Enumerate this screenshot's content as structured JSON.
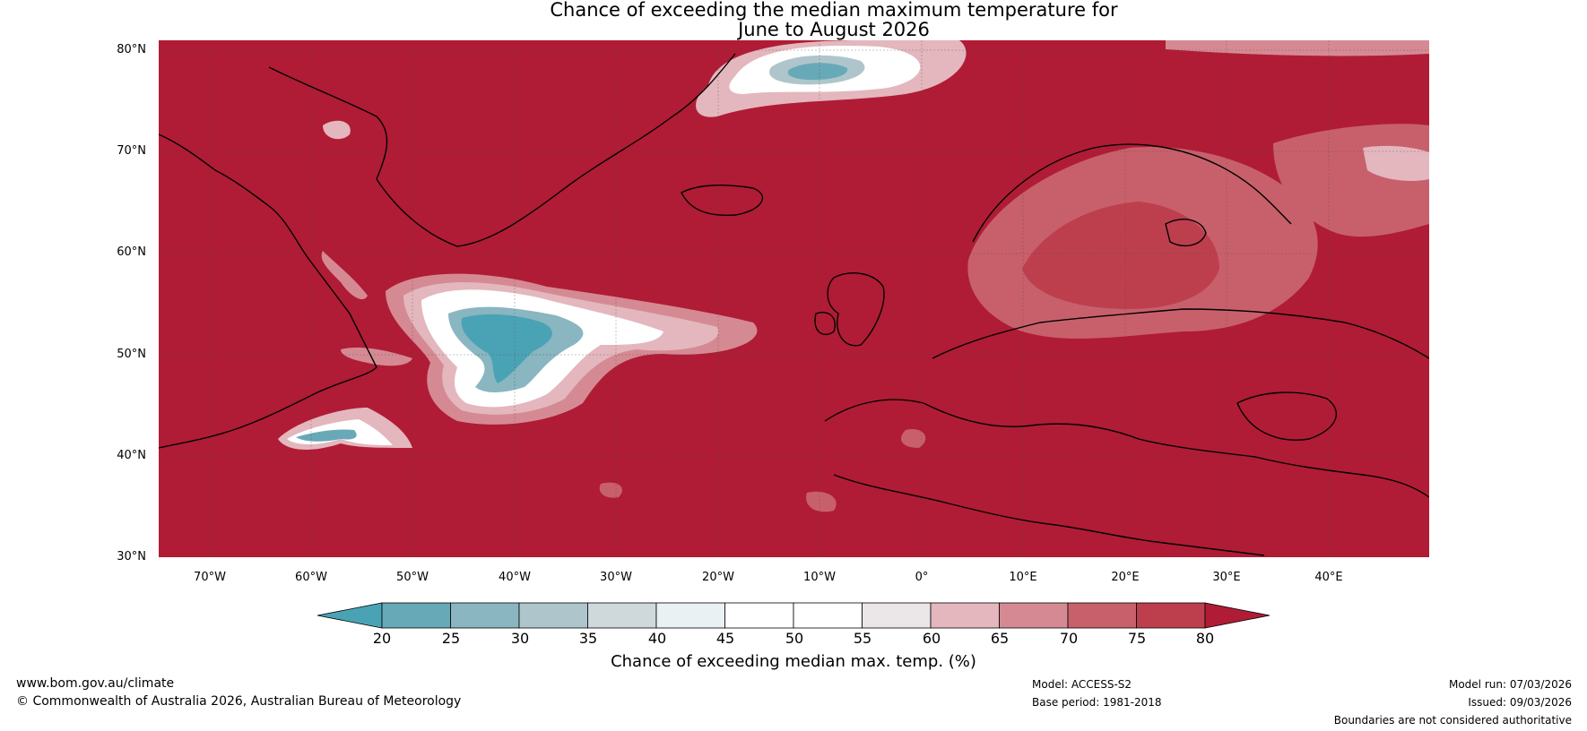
{
  "title": {
    "line1": "Chance of exceeding the median maximum temperature for",
    "line2": "June to August 2026"
  },
  "axes": {
    "lat_labels": [
      "80°N",
      "70°N",
      "60°N",
      "50°N",
      "40°N",
      "30°N"
    ],
    "lon_labels": [
      "70°W",
      "60°W",
      "50°W",
      "40°W",
      "30°W",
      "20°W",
      "10°W",
      "0°",
      "10°E",
      "20°E",
      "30°E",
      "40°E"
    ]
  },
  "colorbar": {
    "ticks": [
      "20",
      "25",
      "30",
      "35",
      "40",
      "45",
      "50",
      "55",
      "60",
      "65",
      "70",
      "75",
      "80"
    ],
    "colors": [
      "#4aa3b5",
      "#68a9b8",
      "#89b6c1",
      "#aec6cb",
      "#cfd9dc",
      "#e9f1f2",
      "#ffffff",
      "#ffffff",
      "#ebe6e7",
      "#e3b7bd",
      "#d58a93",
      "#c8606c",
      "#bd3f4d",
      "#b01c35"
    ],
    "label": "Chance of exceeding median max. temp. (%)"
  },
  "footer": {
    "website": "www.bom.gov.au/climate",
    "copyright": "© Commonwealth of Australia 2026, Australian Bureau of Meteorology",
    "model": "Model: ACCESS-S2",
    "base_period": "Base period: 1981-2018",
    "model_run": "Model run: 07/03/2026",
    "issued": "Issued: 09/03/2026",
    "disclaimer": "Boundaries are not considered authoritative"
  }
}
